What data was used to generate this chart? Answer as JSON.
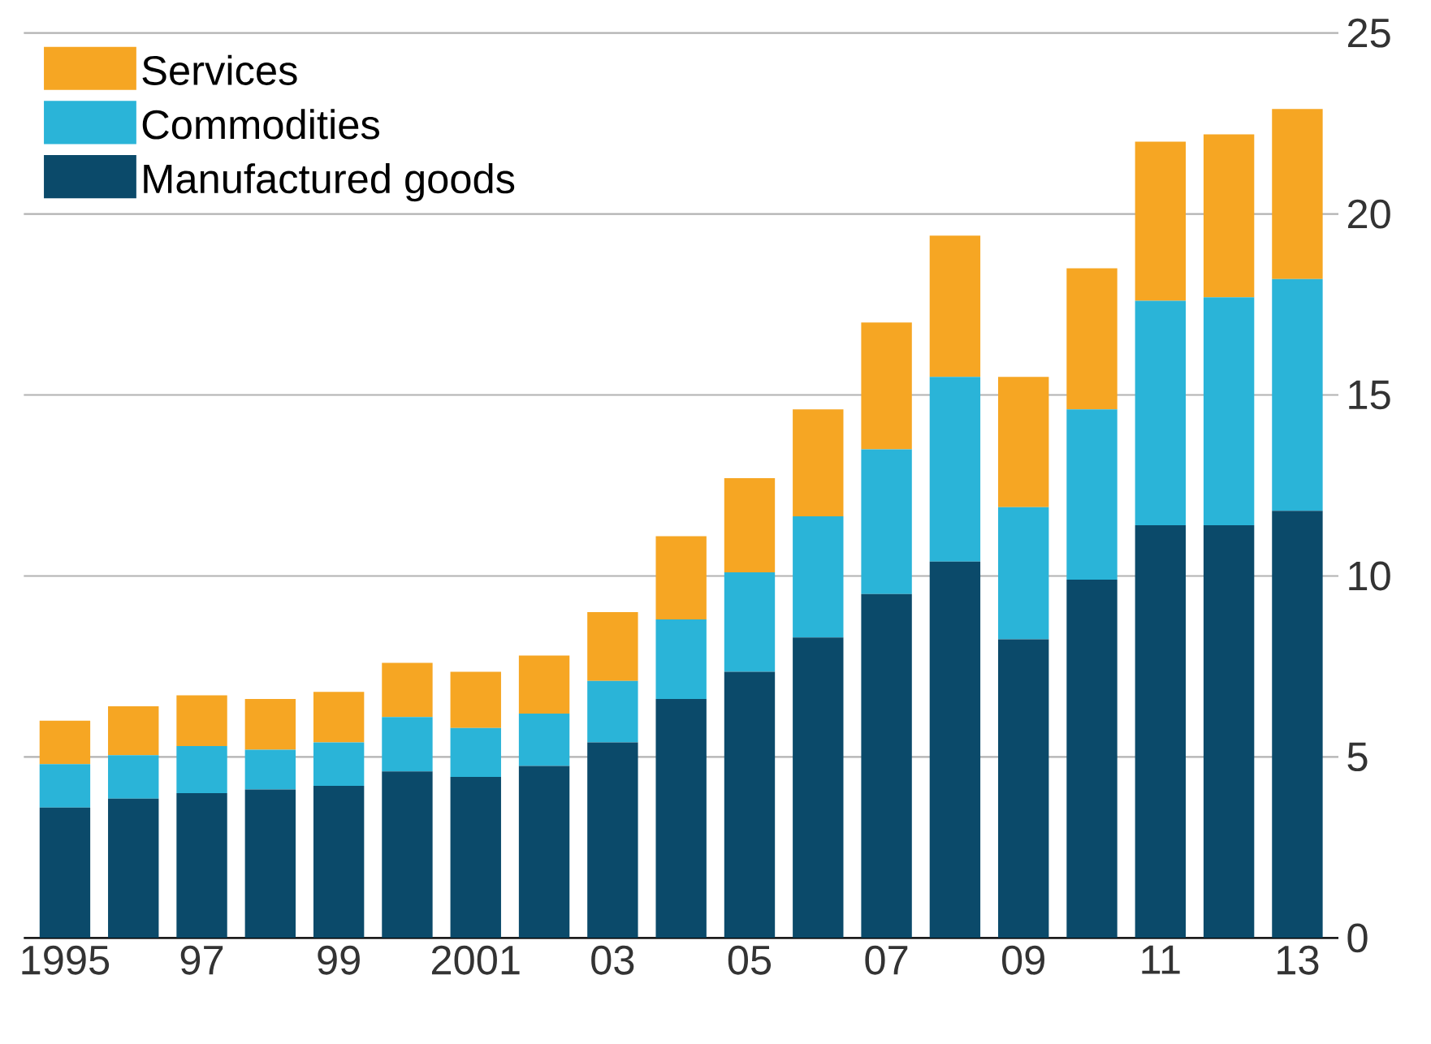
{
  "chart_data": {
    "type": "bar",
    "stacked": true,
    "categories": [
      "1995",
      null,
      "97",
      null,
      "99",
      null,
      "2001",
      null,
      "03",
      null,
      "05",
      null,
      "07",
      null,
      "09",
      null,
      "11",
      null,
      "13"
    ],
    "series": [
      {
        "name": "Manufactured goods",
        "color": "#0b4a6a",
        "values": [
          3.6,
          3.85,
          4.0,
          4.1,
          4.2,
          4.6,
          4.45,
          4.75,
          5.4,
          6.6,
          7.35,
          8.3,
          9.5,
          10.4,
          8.25,
          9.9,
          11.4,
          11.4,
          11.8
        ]
      },
      {
        "name": "Commodities",
        "color": "#2ab4d8",
        "values": [
          1.2,
          1.2,
          1.3,
          1.1,
          1.2,
          1.5,
          1.35,
          1.45,
          1.7,
          2.2,
          2.75,
          3.35,
          4.0,
          5.1,
          3.65,
          4.7,
          6.2,
          6.3,
          6.4
        ]
      },
      {
        "name": "Services",
        "color": "#f6a623",
        "values": [
          1.2,
          1.35,
          1.4,
          1.4,
          1.4,
          1.5,
          1.55,
          1.6,
          1.9,
          2.3,
          2.6,
          2.95,
          3.5,
          3.9,
          3.6,
          3.9,
          4.4,
          4.5,
          4.7
        ]
      }
    ],
    "ylim": [
      0,
      25
    ],
    "yticks": [
      0,
      5,
      10,
      15,
      20,
      25
    ],
    "grid": "y",
    "legend": "top left"
  }
}
